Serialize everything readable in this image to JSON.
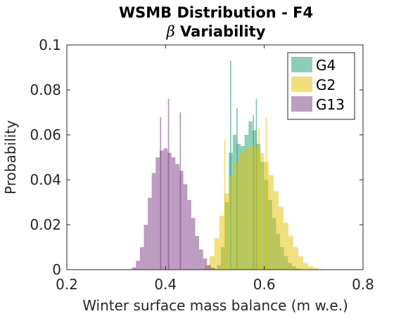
{
  "chart_data": {
    "type": "bar",
    "title_line1": "WSMB Distribution - F4",
    "title_line2_symbol": "β",
    "title_line2_text": " Variability",
    "xlabel": "Winter surface mass balance (m w.e.)",
    "ylabel": "Probability",
    "xlim": [
      0.2,
      0.8
    ],
    "ylim": [
      0,
      0.1
    ],
    "xticks": [
      {
        "value": 0.2,
        "label": "0.2"
      },
      {
        "value": 0.4,
        "label": "0.4"
      },
      {
        "value": 0.6,
        "label": "0.6"
      },
      {
        "value": 0.8,
        "label": "0.8"
      }
    ],
    "yticks": [
      {
        "value": 0,
        "label": "0"
      },
      {
        "value": 0.02,
        "label": "0.02"
      },
      {
        "value": 0.04,
        "label": "0.04"
      },
      {
        "value": 0.06,
        "label": "0.06"
      },
      {
        "value": 0.08,
        "label": "0.08"
      },
      {
        "value": 0.1,
        "label": "0.1"
      }
    ],
    "grid": false,
    "legend_position": "top-right",
    "series": [
      {
        "name": "G4",
        "color": "#1b9e77",
        "x": [
          0.508,
          0.516,
          0.524,
          0.532,
          0.54,
          0.548,
          0.556,
          0.564,
          0.572,
          0.58,
          0.588,
          0.596,
          0.604,
          0.612,
          0.62,
          0.628,
          0.636,
          0.644,
          0.652,
          0.66,
          0.668
        ],
        "y": [
          0.002,
          0.01,
          0.03,
          0.052,
          0.06,
          0.056,
          0.055,
          0.06,
          0.066,
          0.062,
          0.056,
          0.048,
          0.04,
          0.031,
          0.023,
          0.016,
          0.01,
          0.006,
          0.003,
          0.0015,
          0.0005
        ],
        "spikes": [
          {
            "x": 0.532,
            "y": 0.093
          },
          {
            "x": 0.545,
            "y": 0.072
          },
          {
            "x": 0.584,
            "y": 0.076
          },
          {
            "x": 0.578,
            "y": 0.069
          }
        ]
      },
      {
        "name": "G2",
        "color": "#e6c200",
        "x": [
          0.484,
          0.494,
          0.504,
          0.514,
          0.524,
          0.534,
          0.544,
          0.554,
          0.564,
          0.574,
          0.584,
          0.594,
          0.604,
          0.614,
          0.624,
          0.634,
          0.644,
          0.654,
          0.664,
          0.674,
          0.684,
          0.694,
          0.704,
          0.714
        ],
        "y": [
          0.002,
          0.006,
          0.014,
          0.024,
          0.034,
          0.042,
          0.048,
          0.052,
          0.054,
          0.055,
          0.055,
          0.052,
          0.048,
          0.042,
          0.035,
          0.028,
          0.021,
          0.015,
          0.01,
          0.006,
          0.003,
          0.0015,
          0.0008,
          0.0003
        ],
        "spikes": [
          {
            "x": 0.52,
            "y": 0.058
          },
          {
            "x": 0.604,
            "y": 0.068
          },
          {
            "x": 0.589,
            "y": 0.063
          }
        ]
      },
      {
        "name": "G13",
        "color": "#7b3c84",
        "x": [
          0.336,
          0.344,
          0.352,
          0.36,
          0.368,
          0.376,
          0.384,
          0.392,
          0.4,
          0.408,
          0.416,
          0.424,
          0.432,
          0.44,
          0.448,
          0.456,
          0.464,
          0.472,
          0.48,
          0.488,
          0.496
        ],
        "y": [
          0.001,
          0.004,
          0.01,
          0.02,
          0.032,
          0.043,
          0.05,
          0.053,
          0.054,
          0.052,
          0.05,
          0.047,
          0.044,
          0.038,
          0.031,
          0.023,
          0.015,
          0.009,
          0.005,
          0.002,
          0.0008
        ],
        "spikes": [
          {
            "x": 0.39,
            "y": 0.068
          },
          {
            "x": 0.406,
            "y": 0.076
          },
          {
            "x": 0.43,
            "y": 0.07
          }
        ]
      }
    ]
  }
}
